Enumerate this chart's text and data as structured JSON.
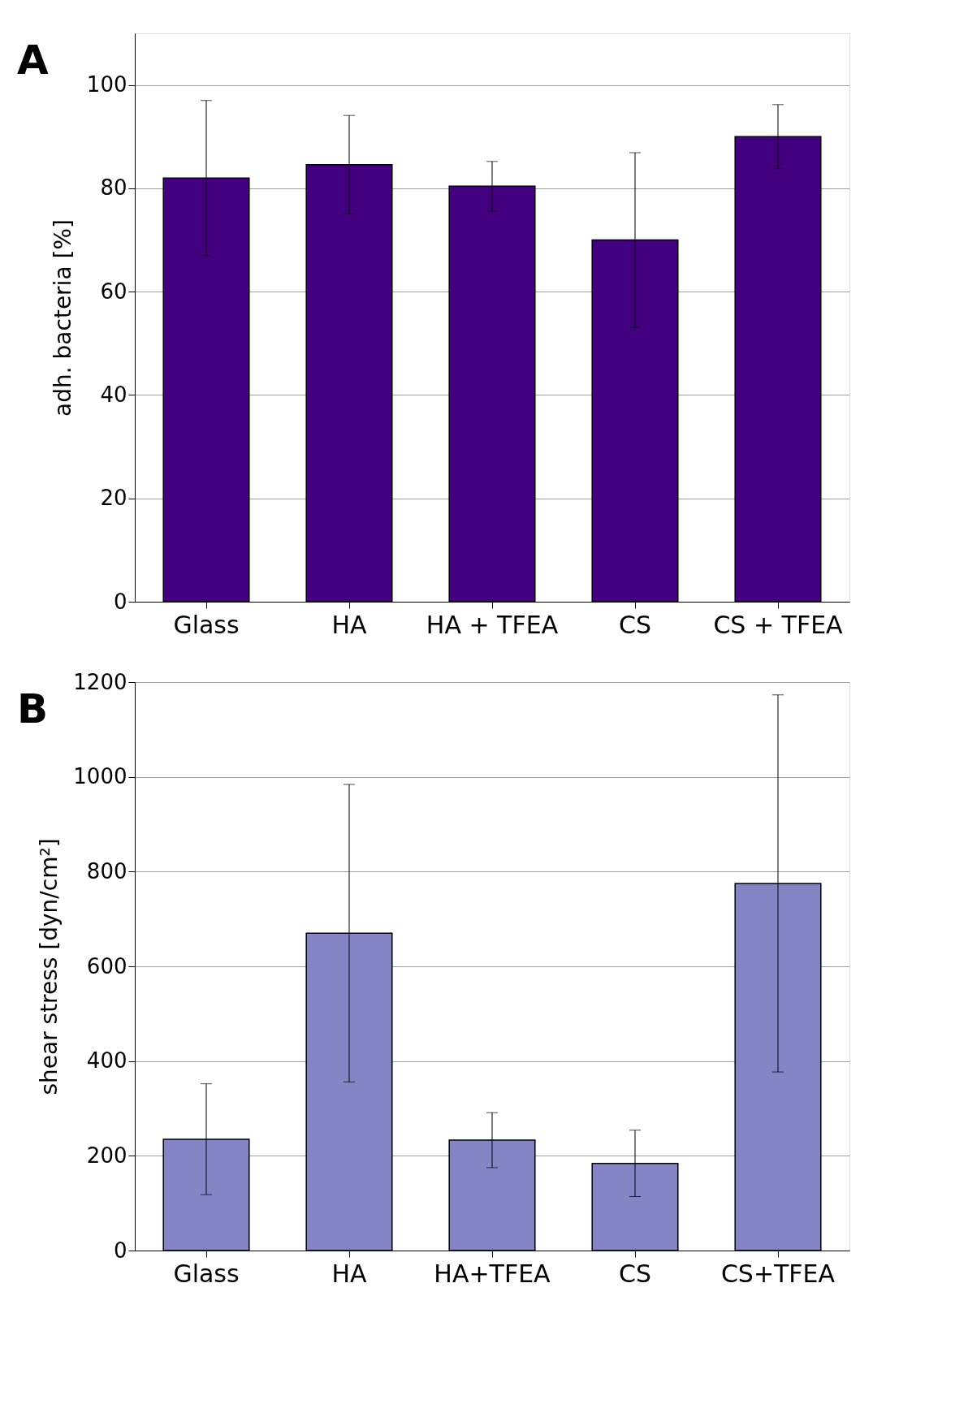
{
  "chart_data": [
    {
      "type": "bar",
      "annotations": [
        "A"
      ],
      "ylabel": "adh. bacteria [%]",
      "categories": [
        "Glass",
        "HA",
        "HA + TFEA",
        "CS",
        "CS + TFEA"
      ],
      "series": [
        {
          "color": "#420080",
          "values": [
            82,
            84.6,
            80.4,
            70,
            90
          ],
          "errors": [
            15,
            9.5,
            4.8,
            16.9,
            6.2
          ]
        }
      ],
      "ylim": [
        0,
        110
      ],
      "yticks": [
        0,
        20,
        40,
        60,
        80,
        100
      ],
      "grid": "y"
    },
    {
      "type": "bar",
      "annotations": [
        "B"
      ],
      "ylabel": "shear stress [dyn/cm²]",
      "categories": [
        "Glass",
        "HA",
        "HA+TFEA",
        "CS",
        "CS+TFEA"
      ],
      "series": [
        {
          "color": "#8585c5",
          "values": [
            235,
            670,
            233,
            184,
            775
          ],
          "errors": [
            117,
            314,
            58,
            70,
            398
          ]
        }
      ],
      "ylim": [
        0,
        1200
      ],
      "yticks": [
        0,
        200,
        400,
        600,
        800,
        1000,
        1200
      ],
      "grid": "y"
    }
  ]
}
